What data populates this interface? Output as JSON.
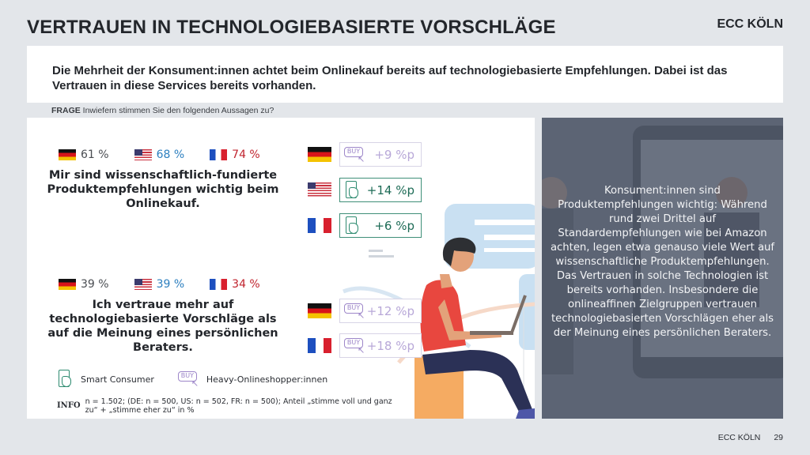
{
  "header": {
    "title": "VERTRAUEN IN TECHNOLOGIEBASIERTE VORSCHLÄGE",
    "brand": "ECC KÖLN"
  },
  "lead": {
    "text": "Die Mehrheit der Konsument:innen achtet beim Onlinekauf bereits auf technologiebasierte Empfehlungen. Dabei ist das Vertrauen in diese Services bereits vorhanden."
  },
  "question": {
    "label": "FRAGE",
    "text": "Inwiefern stimmen Sie den folgenden Aussagen zu?"
  },
  "statements": [
    {
      "values": [
        {
          "country": "DE",
          "flag": "germany-flag-icon",
          "value": "61 %"
        },
        {
          "country": "US",
          "flag": "usa-flag-icon",
          "value": "68 %"
        },
        {
          "country": "FR",
          "flag": "france-flag-icon",
          "value": "74 %"
        }
      ],
      "text": "Mir sind wissenschaftlich-fundierte Produktempfehlungen wichtig beim Onlinekauf.",
      "deltas": [
        {
          "country": "DE",
          "group": "heavy",
          "icon": "buy-cursor-icon",
          "value": "+9 %p"
        },
        {
          "country": "US",
          "group": "smart",
          "icon": "smartphone-hand-icon",
          "value": "+14 %p"
        },
        {
          "country": "FR",
          "group": "smart",
          "icon": "smartphone-hand-icon",
          "value": "+6 %p"
        }
      ]
    },
    {
      "values": [
        {
          "country": "DE",
          "flag": "germany-flag-icon",
          "value": "39 %"
        },
        {
          "country": "US",
          "flag": "usa-flag-icon",
          "value": "39 %"
        },
        {
          "country": "FR",
          "flag": "france-flag-icon",
          "value": "34 %"
        }
      ],
      "text": "Ich vertraue mehr auf technologiebasierte Vorschläge als auf die Meinung eines persönlichen Beraters.",
      "deltas": [
        {
          "country": "DE",
          "group": "heavy",
          "icon": "buy-cursor-icon",
          "value": "+12 %p"
        },
        {
          "country": "FR",
          "group": "heavy",
          "icon": "buy-cursor-icon",
          "value": "+18 %p"
        }
      ]
    }
  ],
  "icons": {
    "buy_text": "BUY",
    "cursor": "↖"
  },
  "legend": [
    {
      "icon": "smartphone-hand-icon",
      "label": "Smart Consumer"
    },
    {
      "icon": "buy-cursor-icon",
      "label": "Heavy-Onlineshopper:innen"
    }
  ],
  "info": {
    "label": "INFO",
    "text": "n = 1.502; (DE: n = 500, US: n = 502, FR: n = 500); Anteil „stimme voll und ganz zu“ + „stimme eher zu“ in %"
  },
  "side": {
    "text": "Konsument:innen sind Produktempfehlungen wichtig: Während rund zwei Drittel auf Standardempfehlungen wie bei Amazon achten, legen etwa genauso viele Wert auf wissenschaftliche Produktempfehlungen. Das Vertrauen in solche Technologien ist bereits vorhanden. Insbesondere die onlineaffinen Zielgruppen vertrauen technologiebasierten Vorschlägen eher als der Meinung eines persönlichen Beraters."
  },
  "footer": {
    "brand": "ECC KÖLN",
    "page": "29"
  },
  "colors": {
    "de_value": "#4a4d52",
    "us_value": "#2c7fbf",
    "fr_value": "#c0242e",
    "smart": "#2e8b70",
    "heavy": "#9d86c9"
  }
}
